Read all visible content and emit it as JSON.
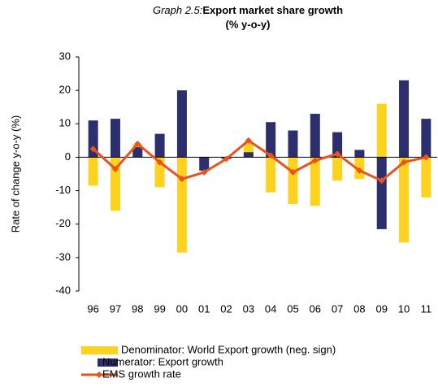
{
  "chart_data": {
    "type": "bar-line",
    "title_prefix": "Graph 2.5:",
    "title": "Export market share growth",
    "subtitle": "(% y-o-y)",
    "y_label": "Rate of change y-o-y (%)",
    "categories": [
      "96",
      "97",
      "98",
      "99",
      "00",
      "01",
      "02",
      "03",
      "04",
      "05",
      "06",
      "07",
      "08",
      "09",
      "10",
      "11"
    ],
    "series": [
      {
        "name": "Denominator: World Export growth (neg. sign)",
        "type": "bar",
        "color": "#ffd21f",
        "values": [
          -8.5,
          -16,
          4,
          -9,
          -28.5,
          -1,
          -0.5,
          4.5,
          -10.5,
          -14,
          -14.5,
          -7,
          -6.5,
          16,
          -25.5,
          -12
        ]
      },
      {
        "name": "Numerator: Export growth",
        "type": "bar",
        "color": "#2b2f6e",
        "values": [
          11,
          11.5,
          3,
          7,
          20,
          -4,
          -0.5,
          1.5,
          10.5,
          8,
          13,
          7.5,
          2.2,
          -21.5,
          23,
          11.5
        ]
      },
      {
        "name": "EMS growth rate",
        "type": "line",
        "color": "#e8531e",
        "values": [
          2.5,
          -3.5,
          4,
          -1.5,
          -6.5,
          -4.5,
          -0.5,
          5,
          0.5,
          -4.5,
          -1,
          1,
          -4,
          -7,
          -1.5,
          0
        ]
      }
    ],
    "ylim": [
      -40,
      30
    ],
    "yticks": [
      -40,
      -30,
      -20,
      -10,
      0,
      10,
      20,
      30
    ],
    "grid": false
  }
}
